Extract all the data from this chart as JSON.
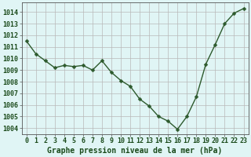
{
  "x": [
    0,
    1,
    2,
    3,
    4,
    5,
    6,
    7,
    8,
    9,
    10,
    11,
    12,
    13,
    14,
    15,
    16,
    17,
    18,
    19,
    20,
    21,
    22,
    23
  ],
  "y": [
    1011.5,
    1010.4,
    1009.8,
    1009.2,
    1009.4,
    1009.3,
    1009.4,
    1009.0,
    1009.8,
    1008.8,
    1008.1,
    1007.6,
    1006.5,
    1005.9,
    1005.0,
    1004.6,
    1003.9,
    1005.0,
    1006.7,
    1009.5,
    1011.2,
    1013.0,
    1013.9,
    1014.3
  ],
  "line_color": "#2d5a2d",
  "marker": "D",
  "marker_size": 2.5,
  "bg_color": "#e0f5f5",
  "grid_color": "#b8b8b8",
  "plot_bg_color": "#e0f5f5",
  "ylabel_ticks": [
    1004,
    1005,
    1006,
    1007,
    1008,
    1009,
    1010,
    1011,
    1012,
    1013,
    1014
  ],
  "xlim": [
    -0.5,
    23.5
  ],
  "ylim": [
    1003.5,
    1014.8
  ],
  "xlabel": "Graphe pression niveau de la mer (hPa)",
  "xlabel_fontsize": 7.0,
  "tick_fontsize": 6.0,
  "label_color": "#1a4a1a",
  "spine_color": "#555555",
  "linewidth": 1.0
}
